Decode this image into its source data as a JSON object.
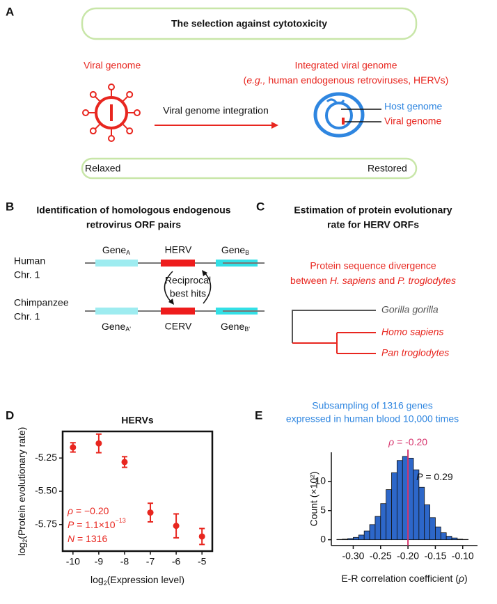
{
  "panel_a": {
    "letter": "A",
    "title": "The selection against cytotoxicity",
    "viral_genome": "Viral genome",
    "integrated_line1": "Integrated viral genome",
    "integrated_line2": [
      "(",
      "e.g.,",
      " human endogenous retroviruses, HERVs)"
    ],
    "arrow_label": "Viral genome integration",
    "host_genome": "Host genome",
    "viral_genome_2": "Viral genome",
    "relaxed": "Relaxed",
    "restored": "Restored"
  },
  "panel_b": {
    "letter": "B",
    "title": [
      "Identification of homologous endogenous",
      "retrovirus ORF pairs"
    ],
    "human": [
      "Human",
      "Chr. 1"
    ],
    "chimp": [
      "Chimpanzee",
      "Chr. 1"
    ],
    "human_genes": [
      {
        "name": "Gene",
        "sub": "A"
      },
      {
        "name": "HERV"
      },
      {
        "name": "Gene",
        "sub": "B"
      }
    ],
    "chimp_genes": [
      {
        "name": "Gene",
        "sub": "A'"
      },
      {
        "name": "CERV"
      },
      {
        "name": "Gene",
        "sub": "B'"
      }
    ],
    "reciprocal": [
      "Reciprocal",
      "best hits"
    ]
  },
  "panel_c": {
    "letter": "C",
    "title": [
      "Estimation of protein evolutionary",
      "rate for HERV ORFs"
    ],
    "divergence": [
      "Protein sequence divergence",
      [
        "between ",
        "H. sapiens",
        " and ",
        "P. troglodytes"
      ]
    ],
    "species": [
      "Gorilla gorilla",
      "Homo sapiens",
      "Pan troglodytes"
    ]
  },
  "chart_data": [
    {
      "type": "scatter",
      "letter": "D",
      "title": "HERVs",
      "x": [
        -10,
        -9,
        -8,
        -7,
        -6,
        -5
      ],
      "values": [
        -5.17,
        -5.14,
        -5.28,
        -5.66,
        -5.76,
        -5.84
      ],
      "errors": [
        0.035,
        0.07,
        0.04,
        0.07,
        0.09,
        0.06
      ],
      "color": "#e8261f",
      "xlim": [
        -10.4,
        -4.6
      ],
      "ylim": [
        -5.95,
        -5.05
      ],
      "xticks": [
        -10,
        -9,
        -8,
        -7,
        -6,
        -5
      ],
      "yticks": [
        -5.25,
        {
          "value": -5.5,
          "label": "-5.50"
        },
        -5.75
      ],
      "xlabel": [
        "log",
        "2",
        "(Expression level)"
      ],
      "ylabel": [
        "log",
        "2",
        "(Protein evolutionary rate)"
      ],
      "annotations": [
        [
          "ρ",
          " =  −0.20"
        ],
        [
          "P",
          " =  1.1×10",
          "−13"
        ],
        [
          "N",
          " = 1316"
        ]
      ]
    },
    {
      "type": "histogram",
      "letter": "E",
      "title": [
        "Subsampling of 1316 genes",
        "expressed in human blood 10,000 times"
      ],
      "bins": [
        -0.33,
        -0.32,
        -0.31,
        -0.3,
        -0.29,
        -0.28,
        -0.27,
        -0.26,
        -0.25,
        -0.24,
        -0.23,
        -0.22,
        -0.21,
        -0.2,
        -0.19,
        -0.18,
        -0.17,
        -0.16,
        -0.15,
        -0.14,
        -0.13,
        -0.12,
        -0.11,
        -0.1,
        -0.09
      ],
      "counts": [
        0.05,
        0.1,
        0.2,
        0.4,
        0.8,
        1.5,
        2.6,
        4.0,
        6.2,
        8.6,
        11.5,
        13.6,
        14.3,
        14.0,
        12.0,
        9.0,
        6.0,
        3.8,
        2.2,
        1.2,
        0.6,
        0.3,
        0.1,
        0.05
      ],
      "color": "#2d67c9",
      "observed": -0.2,
      "observed_label": [
        "ρ",
        " = -0.20"
      ],
      "observed_color": "#d6336c",
      "p_label": [
        "P",
        " = 0.29"
      ],
      "xlim": [
        -0.34,
        -0.073
      ],
      "ylim": [
        -1,
        15
      ],
      "xticks": [
        {
          "value": -0.3,
          "label": "-0.30"
        },
        -0.25,
        {
          "value": -0.2,
          "label": "-0.20"
        },
        -0.15,
        {
          "value": -0.1,
          "label": "-0.10"
        }
      ],
      "yticks": [
        0,
        5,
        10
      ],
      "xlabel": [
        "E-R correlation coefficient (",
        "ρ",
        ")"
      ],
      "ylabel": "Count (×10²)"
    }
  ]
}
